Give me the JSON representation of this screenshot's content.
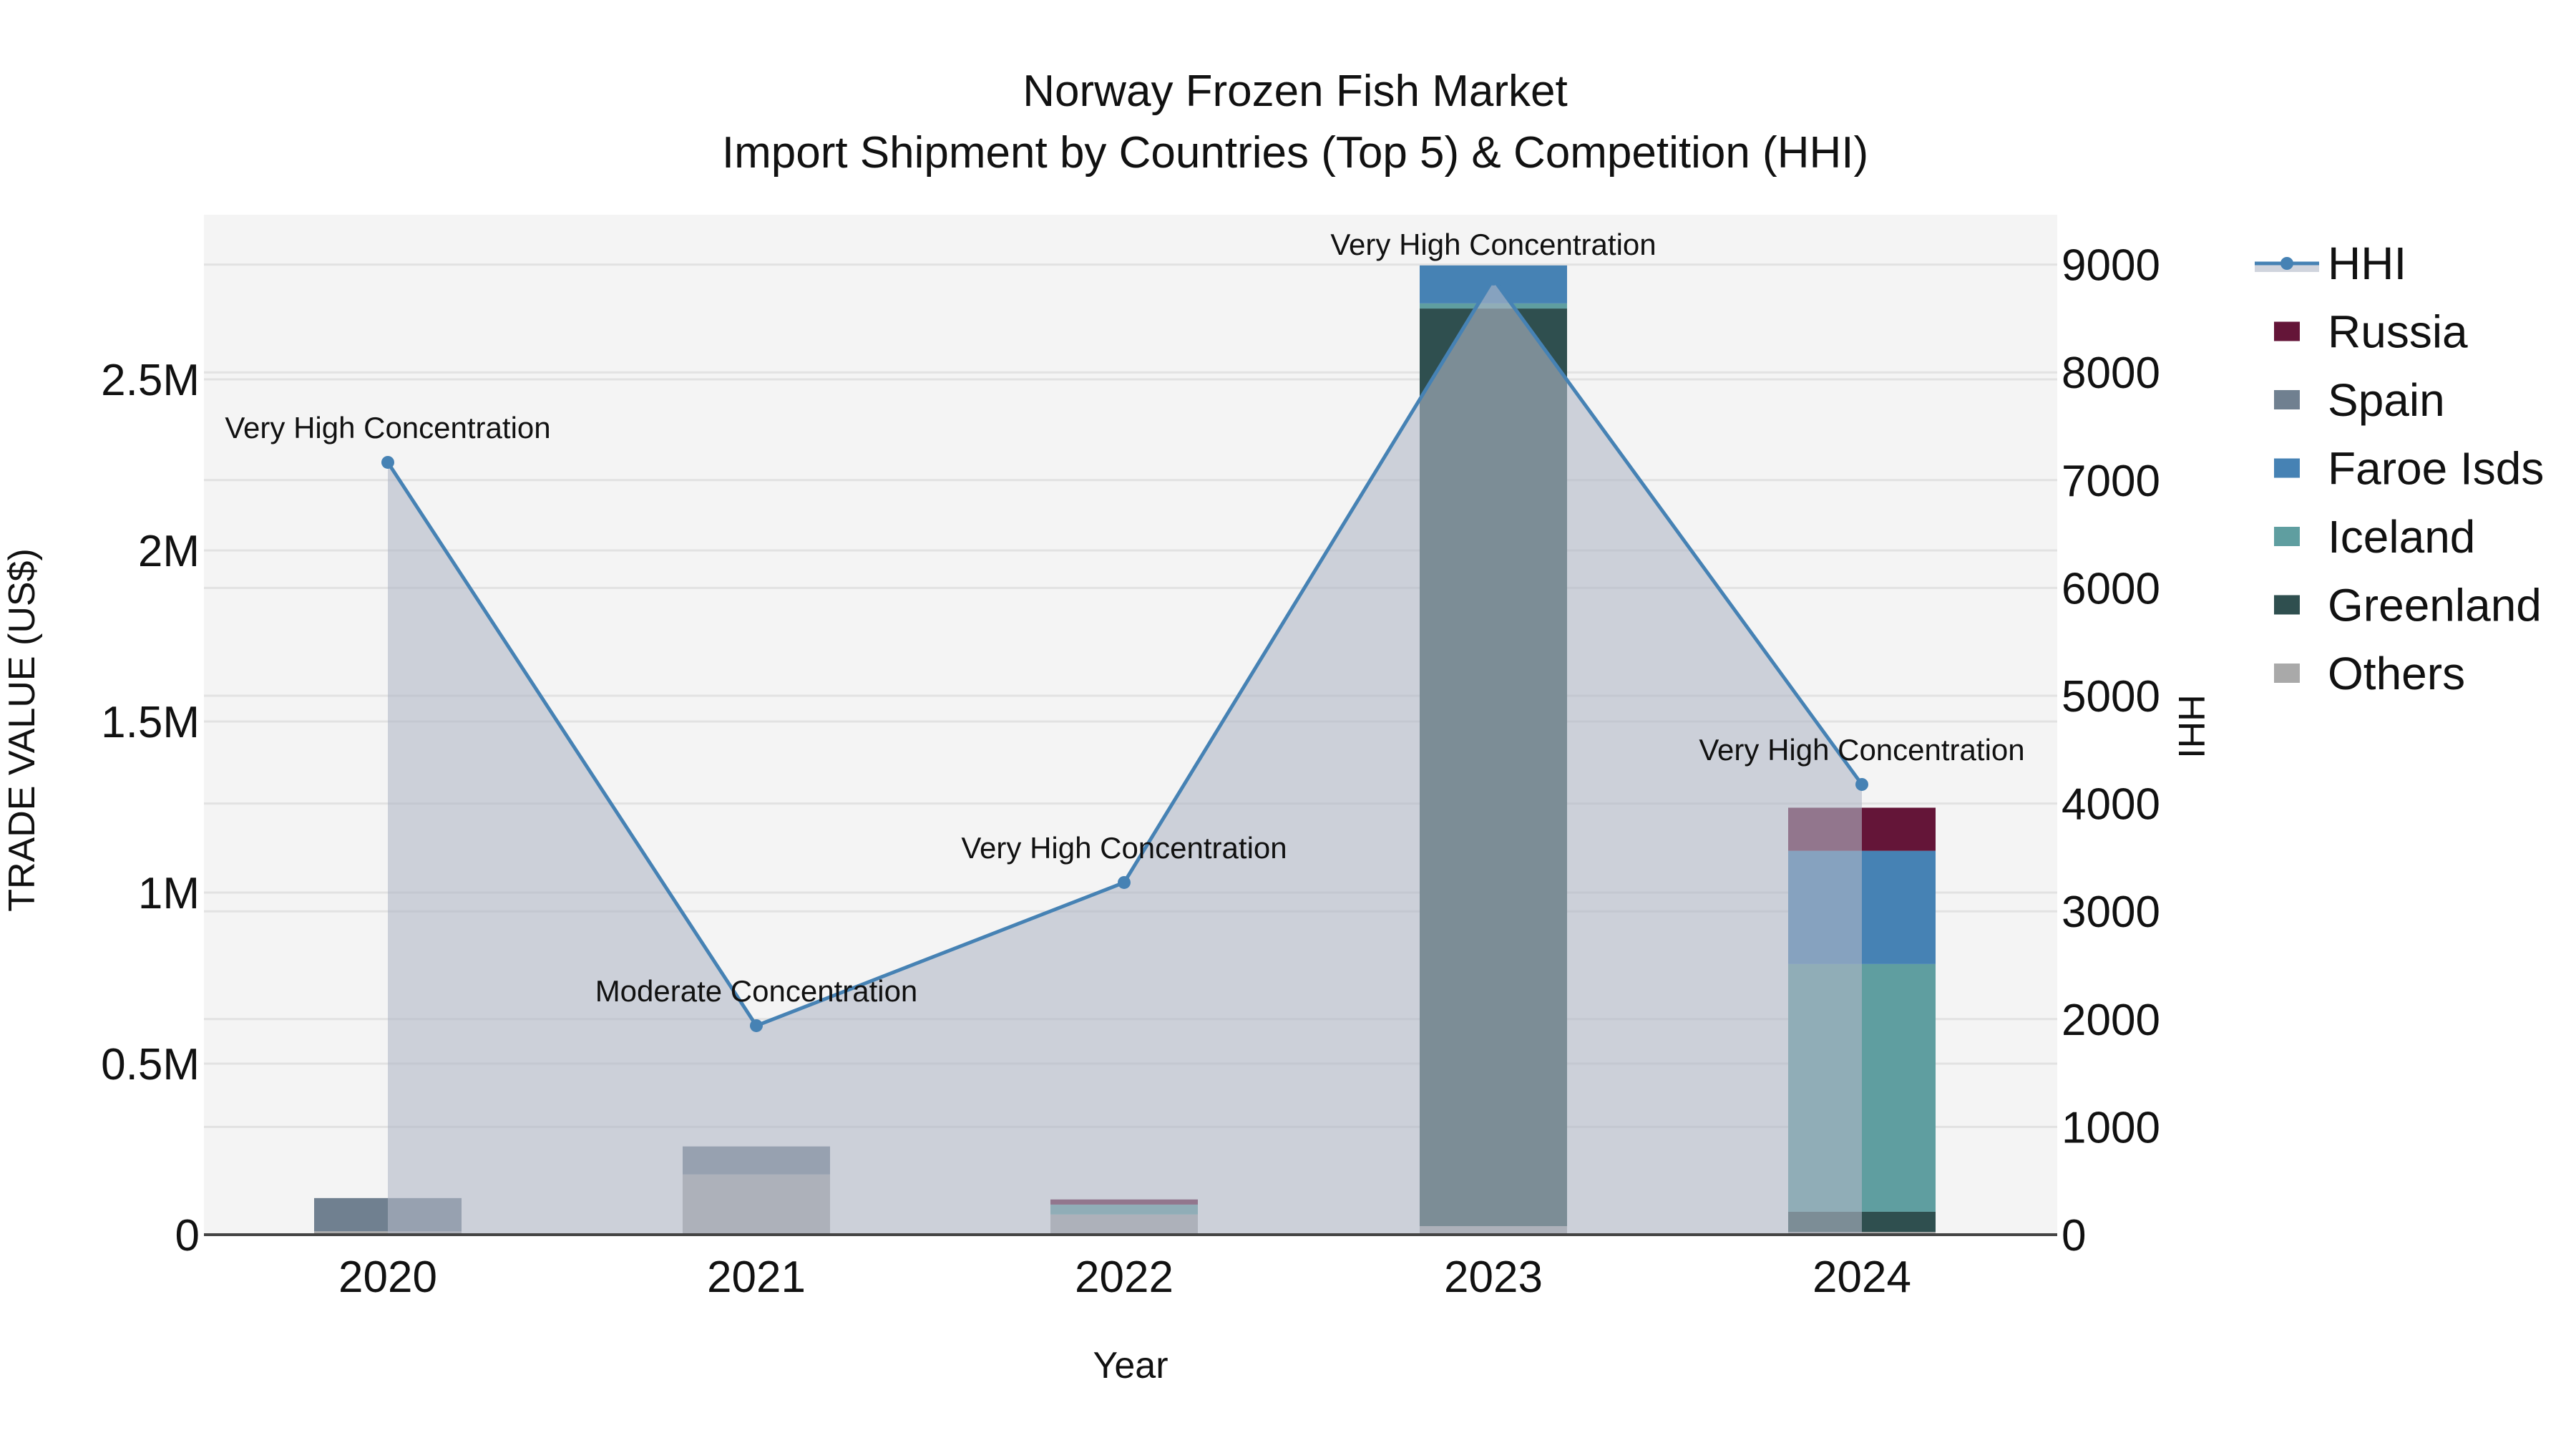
{
  "chart_data": {
    "type": "bar",
    "subtype": "stacked bar + line (dual axis)",
    "title": "Norway Frozen Fish Market",
    "subtitle": "Import Shipment by Countries (Top 5) & Competition (HHI)",
    "xlabel": "Year",
    "ylabel": "TRADE VALUE (US$)",
    "y2label": "HHI",
    "categories": [
      "2020",
      "2021",
      "2022",
      "2023",
      "2024"
    ],
    "ylim": [
      0,
      2850000
    ],
    "y_ticks": [
      0,
      500000,
      1000000,
      1500000,
      2000000,
      2500000
    ],
    "y_tick_labels": [
      "0",
      "0.5M",
      "1M",
      "1.5M",
      "2M",
      "2.5M"
    ],
    "y2lim": [
      0,
      9480
    ],
    "y2_ticks": [
      0,
      1000,
      2000,
      3000,
      4000,
      5000,
      6000,
      7000,
      8000,
      9000
    ],
    "y2_tick_labels": [
      "0",
      "1000",
      "2000",
      "3000",
      "4000",
      "5000",
      "6000",
      "7000",
      "8000",
      "9000"
    ],
    "grid": true,
    "legend_position": "right",
    "series": [
      {
        "name": "Others",
        "color": "#A9A9A9",
        "values": [
          10000,
          176000,
          59000,
          25000,
          8000
        ]
      },
      {
        "name": "Greenland",
        "color": "#2F4F4F",
        "values": [
          0,
          0,
          0,
          2682000,
          59000
        ]
      },
      {
        "name": "Iceland",
        "color": "#5F9EA0",
        "values": [
          0,
          0,
          29000,
          15000,
          724000
        ]
      },
      {
        "name": "Faroe Isds",
        "color": "#4682B4",
        "values": [
          0,
          0,
          0,
          111000,
          331000
        ]
      },
      {
        "name": "Spain",
        "color": "#708090",
        "values": [
          97000,
          82000,
          0,
          0,
          0
        ]
      },
      {
        "name": "Russia",
        "color": "#641538",
        "values": [
          0,
          0,
          15000,
          0,
          126000
        ]
      }
    ],
    "line_series": {
      "name": "HHI",
      "axis": "y2",
      "color": "#4682B4",
      "fill": "tozeroy",
      "fill_color": "rgba(176,184,198,0.6)",
      "values": [
        7165,
        1939,
        3267,
        8865,
        4177
      ],
      "annotations": [
        "Very High Concentration",
        "Moderate Concentration",
        "Very High Concentration",
        "Very High Concentration",
        "Very High Concentration"
      ]
    }
  },
  "legend": {
    "items": [
      {
        "label": "HHI",
        "kind": "line",
        "color": "#4682B4"
      },
      {
        "label": "Russia",
        "kind": "box",
        "color": "#641538"
      },
      {
        "label": "Spain",
        "kind": "box",
        "color": "#708090"
      },
      {
        "label": "Faroe Isds",
        "kind": "box",
        "color": "#4682B4"
      },
      {
        "label": "Iceland",
        "kind": "box",
        "color": "#5F9EA0"
      },
      {
        "label": "Greenland",
        "kind": "box",
        "color": "#2F4F4F"
      },
      {
        "label": "Others",
        "kind": "box",
        "color": "#A9A9A9"
      }
    ]
  },
  "colors": {
    "plot_bg": "#F4F4F4",
    "grid": "#E2E2E2",
    "axis_line": "#444444"
  }
}
